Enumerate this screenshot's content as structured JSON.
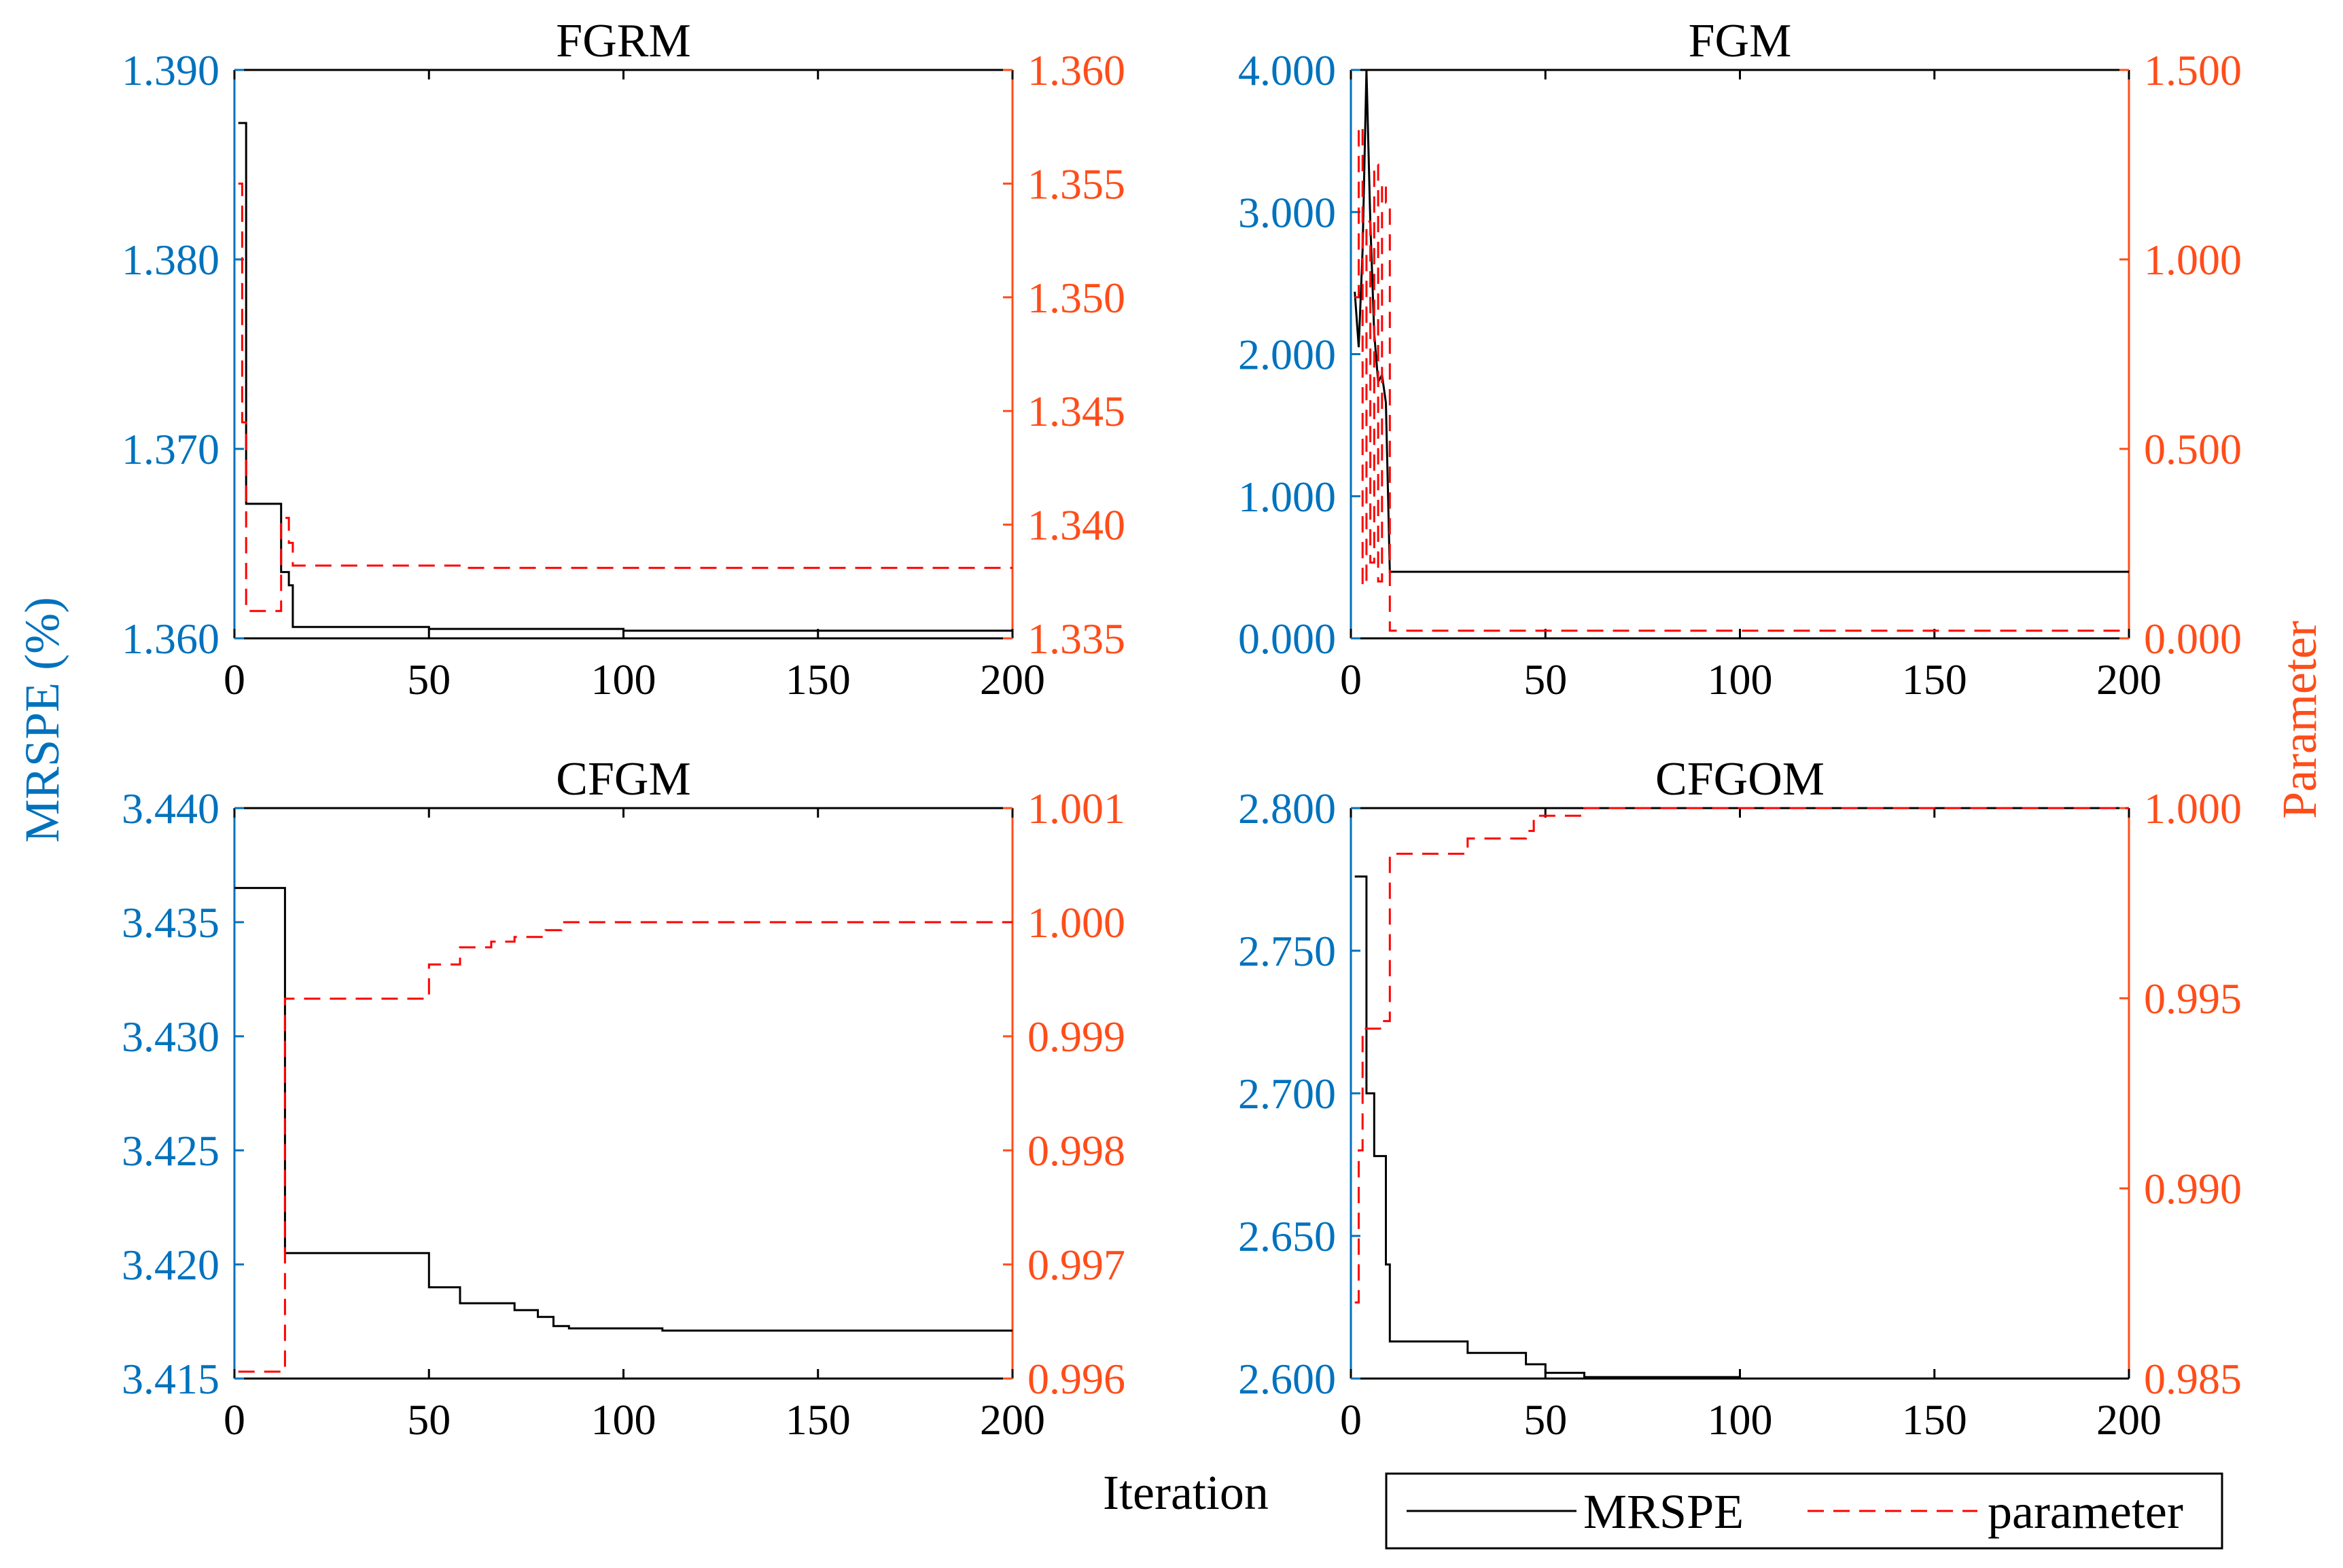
{
  "colors": {
    "left_axis": "#0072BD",
    "right_axis": "#FF4D1A",
    "mrspe_line": "#000000",
    "param_line": "#FF0000"
  },
  "figure": {
    "left_axis_label": "MRSPE (%)",
    "right_axis_label": "Parameter",
    "x_axis_label": "Iteration",
    "legend": [
      "MRSPE",
      "parameter"
    ]
  },
  "chart_data": [
    {
      "type": "line",
      "title": "FGRM",
      "xlim": [
        0,
        200
      ],
      "xticks": [
        "0",
        "50",
        "100",
        "150",
        "200"
      ],
      "ylim_left": [
        1.36,
        1.39
      ],
      "yticks_left": [
        "1.360",
        "1.370",
        "1.380",
        "1.390"
      ],
      "ylim_right": [
        1.335,
        1.36
      ],
      "yticks_right": [
        "1.335",
        "1.340",
        "1.345",
        "1.350",
        "1.355",
        "1.360"
      ],
      "series": [
        {
          "name": "MRSPE",
          "axis": "left",
          "step": true,
          "x": [
            1,
            2,
            3,
            11,
            12,
            13,
            14,
            15,
            50,
            100,
            200
          ],
          "y": [
            1.3872,
            1.3872,
            1.3671,
            1.3671,
            1.3635,
            1.3635,
            1.3628,
            1.3606,
            1.3605,
            1.3604,
            1.3604
          ]
        },
        {
          "name": "parameter",
          "axis": "right",
          "step": true,
          "x": [
            1,
            2,
            3,
            10,
            12,
            14,
            15,
            60,
            200
          ],
          "y": [
            1.355,
            1.3445,
            1.3362,
            1.3362,
            1.3403,
            1.3392,
            1.3382,
            1.3381,
            1.3381
          ]
        }
      ]
    },
    {
      "type": "line",
      "title": "FGM",
      "xlim": [
        0,
        200
      ],
      "xticks": [
        "0",
        "50",
        "100",
        "150",
        "200"
      ],
      "ylim_left": [
        0,
        4.1
      ],
      "yticks_left": [
        "0.000",
        "1.000",
        "2.000",
        "3.000",
        "4.000"
      ],
      "ylim_right": [
        0,
        1.5
      ],
      "yticks_right": [
        "0.000",
        "0.500",
        "1.000",
        "1.500"
      ],
      "series": [
        {
          "name": "MRSPE",
          "axis": "left",
          "step": false,
          "x": [
            1,
            2,
            3,
            4,
            5,
            6,
            7,
            8,
            9,
            10,
            200
          ],
          "y": [
            2.5,
            2.1,
            2.8,
            4.1,
            3.0,
            2.2,
            1.85,
            1.9,
            1.7,
            0.48,
            0.48
          ]
        },
        {
          "name": "parameter",
          "axis": "right",
          "step": true,
          "x": [
            1,
            2,
            3,
            4,
            5,
            6,
            7,
            8,
            9,
            10,
            200
          ],
          "y": [
            0.9,
            1.35,
            0.14,
            1.1,
            0.2,
            1.25,
            0.15,
            1.2,
            1.15,
            0.02,
            0.02
          ]
        }
      ]
    },
    {
      "type": "line",
      "title": "CFGM",
      "xlim": [
        0,
        200
      ],
      "xticks": [
        "0",
        "50",
        "100",
        "150",
        "200"
      ],
      "ylim_left": [
        3.415,
        3.44
      ],
      "yticks_left": [
        "3.415",
        "3.420",
        "3.425",
        "3.430",
        "3.435",
        "3.440"
      ],
      "ylim_right": [
        0.996,
        1.001
      ],
      "yticks_right": [
        "0.996",
        "0.997",
        "0.998",
        "0.999",
        "1.000",
        "1.001"
      ],
      "series": [
        {
          "name": "MRSPE",
          "axis": "left",
          "step": true,
          "x": [
            0,
            12,
            13,
            48,
            50,
            58,
            65,
            72,
            78,
            82,
            86,
            110,
            200
          ],
          "y": [
            3.4365,
            3.4365,
            3.4205,
            3.4205,
            3.419,
            3.4183,
            3.4183,
            3.418,
            3.4177,
            3.4173,
            3.4172,
            3.4171,
            3.4171
          ]
        },
        {
          "name": "parameter",
          "axis": "right",
          "step": true,
          "x": [
            1,
            12,
            13,
            48,
            50,
            58,
            66,
            72,
            80,
            84,
            200
          ],
          "y": [
            0.99606,
            0.99606,
            0.99933,
            0.99933,
            0.99963,
            0.99978,
            0.99983,
            0.99987,
            0.99993,
            1.0,
            1.0
          ]
        }
      ]
    },
    {
      "type": "line",
      "title": "CFGOM",
      "xlim": [
        0,
        200
      ],
      "xticks": [
        "0",
        "50",
        "100",
        "150",
        "200"
      ],
      "ylim_left": [
        2.6,
        2.8
      ],
      "yticks_left": [
        "2.600",
        "2.650",
        "2.700",
        "2.750",
        "2.800"
      ],
      "ylim_right": [
        0.985,
        1.0
      ],
      "yticks_right": [
        "0.985",
        "0.990",
        "0.995",
        "1.000"
      ],
      "series": [
        {
          "name": "MRSPE",
          "axis": "left",
          "step": true,
          "x": [
            1,
            3,
            4,
            6,
            8,
            9,
            10,
            30,
            45,
            50,
            60,
            100,
            200
          ],
          "y": [
            2.776,
            2.776,
            2.7,
            2.678,
            2.678,
            2.64,
            2.613,
            2.609,
            2.605,
            2.602,
            2.6005,
            2.6,
            2.6
          ]
        },
        {
          "name": "parameter",
          "axis": "right",
          "step": true,
          "x": [
            1,
            2,
            3,
            5,
            8,
            10,
            12,
            30,
            45,
            47,
            60,
            200
          ],
          "y": [
            0.987,
            0.991,
            0.9942,
            0.9942,
            0.9944,
            0.9988,
            0.9988,
            0.9992,
            0.9994,
            0.9998,
            1.0,
            1.0
          ]
        }
      ]
    }
  ]
}
